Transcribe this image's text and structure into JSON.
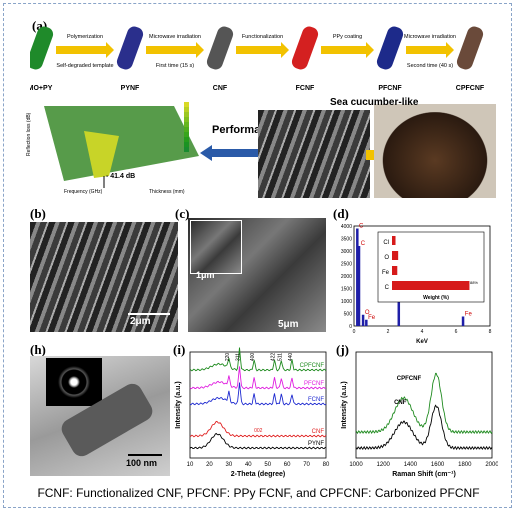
{
  "panel_labels": {
    "a": "(a)",
    "b": "(b)",
    "c": "(c)",
    "d": "(d)",
    "h": "(h)",
    "i": "(i)",
    "j": "(j)"
  },
  "scheme": {
    "stages": [
      {
        "name": "MO+PY",
        "color": "#1f8a2a"
      },
      {
        "name": "PYNF",
        "color": "#2a2f8c"
      },
      {
        "name": "CNF",
        "color": "#555555"
      },
      {
        "name": "FCNF",
        "color": "#d42020"
      },
      {
        "name": "PFCNF",
        "color": "#1d2a8a"
      },
      {
        "name": "CPFCNF",
        "color": "#6a4a3a"
      }
    ],
    "steps": [
      {
        "top": "Polymerization",
        "bottom": "Self-degraded template"
      },
      {
        "top": "Microwave irradiation",
        "bottom": "First time (15 s)"
      },
      {
        "top": "Functionalization",
        "bottom": ""
      },
      {
        "top": "PPy coating",
        "bottom": ""
      },
      {
        "top": "Microwave irradiation",
        "bottom": "Second time (40 s)"
      }
    ]
  },
  "performance_label": "Performance",
  "sea_cucumber_label": "Sea cucumber-like",
  "rl_plot": {
    "min_label": "- 41.4 dB",
    "zlabel": "Reflection loss (dB)",
    "xlabel": "Frequency (GHz)",
    "ylabel": "Thickness (mm)"
  },
  "scalebars": {
    "b": "2μm",
    "c_small": "1μm",
    "c_large": "5μm",
    "h": "100 nm"
  },
  "chart_data": [
    {
      "type": "bar",
      "title": "",
      "categories": [
        "Cl",
        "O",
        "Fe",
        "C"
      ],
      "values": [
        4,
        7,
        6,
        88
      ],
      "xlabel": "Weight (%)",
      "annotation": "88%",
      "colors": {
        "bar": "#d61a1a"
      }
    },
    {
      "type": "bar",
      "title": "",
      "xlabel": "KeV",
      "ylabel": "",
      "xlim": [
        0,
        8
      ],
      "ylim": [
        0,
        4000
      ],
      "yticks": [
        0,
        500,
        1000,
        1500,
        2000,
        2500,
        3000,
        3500,
        4000
      ],
      "xticks": [
        0,
        2,
        4,
        6,
        8
      ],
      "peaks": [
        {
          "x": 0.28,
          "y": 3200,
          "label": "C"
        },
        {
          "x": 0.18,
          "y": 3900,
          "label": "C"
        },
        {
          "x": 0.52,
          "y": 450,
          "label": "O"
        },
        {
          "x": 0.71,
          "y": 250,
          "label": "Fe"
        },
        {
          "x": 2.62,
          "y": 2100,
          "label": "Cl"
        },
        {
          "x": 6.4,
          "y": 380,
          "label": "Fe"
        }
      ],
      "colors": {
        "bar": "#1f1fa8"
      }
    },
    {
      "type": "line",
      "xlabel": "2-Theta (degree)",
      "ylabel": "Intensity (a.u.)",
      "xlim": [
        10,
        80
      ],
      "xticks": [
        10,
        20,
        30,
        40,
        50,
        60,
        70,
        80
      ],
      "series": [
        {
          "name": "CPFCNF",
          "color": "#1e8a1e"
        },
        {
          "name": "PFCNF",
          "color": "#e01ee0"
        },
        {
          "name": "FCNF",
          "color": "#1e2ad0"
        },
        {
          "name": "CNF",
          "color": "#e02020"
        },
        {
          "name": "PYNF",
          "color": "#000000"
        }
      ],
      "peak_labels": [
        "220",
        "311",
        "400",
        "422",
        "511",
        "440",
        "002"
      ]
    },
    {
      "type": "line",
      "xlabel": "Raman Shift (cm⁻¹)",
      "ylabel": "Intensity (a.u.)",
      "xlim": [
        1000,
        2000
      ],
      "xticks": [
        1000,
        1200,
        1400,
        1600,
        1800,
        2000
      ],
      "series": [
        {
          "name": "CPFCNF",
          "color": "#1e8a1e"
        },
        {
          "name": "CNF",
          "color": "#000000"
        }
      ]
    }
  ],
  "caption": "FCNF: Functionalized CNF, PFCNF: PPy FCNF, and CPFCNF: Carbonized PFCNF"
}
